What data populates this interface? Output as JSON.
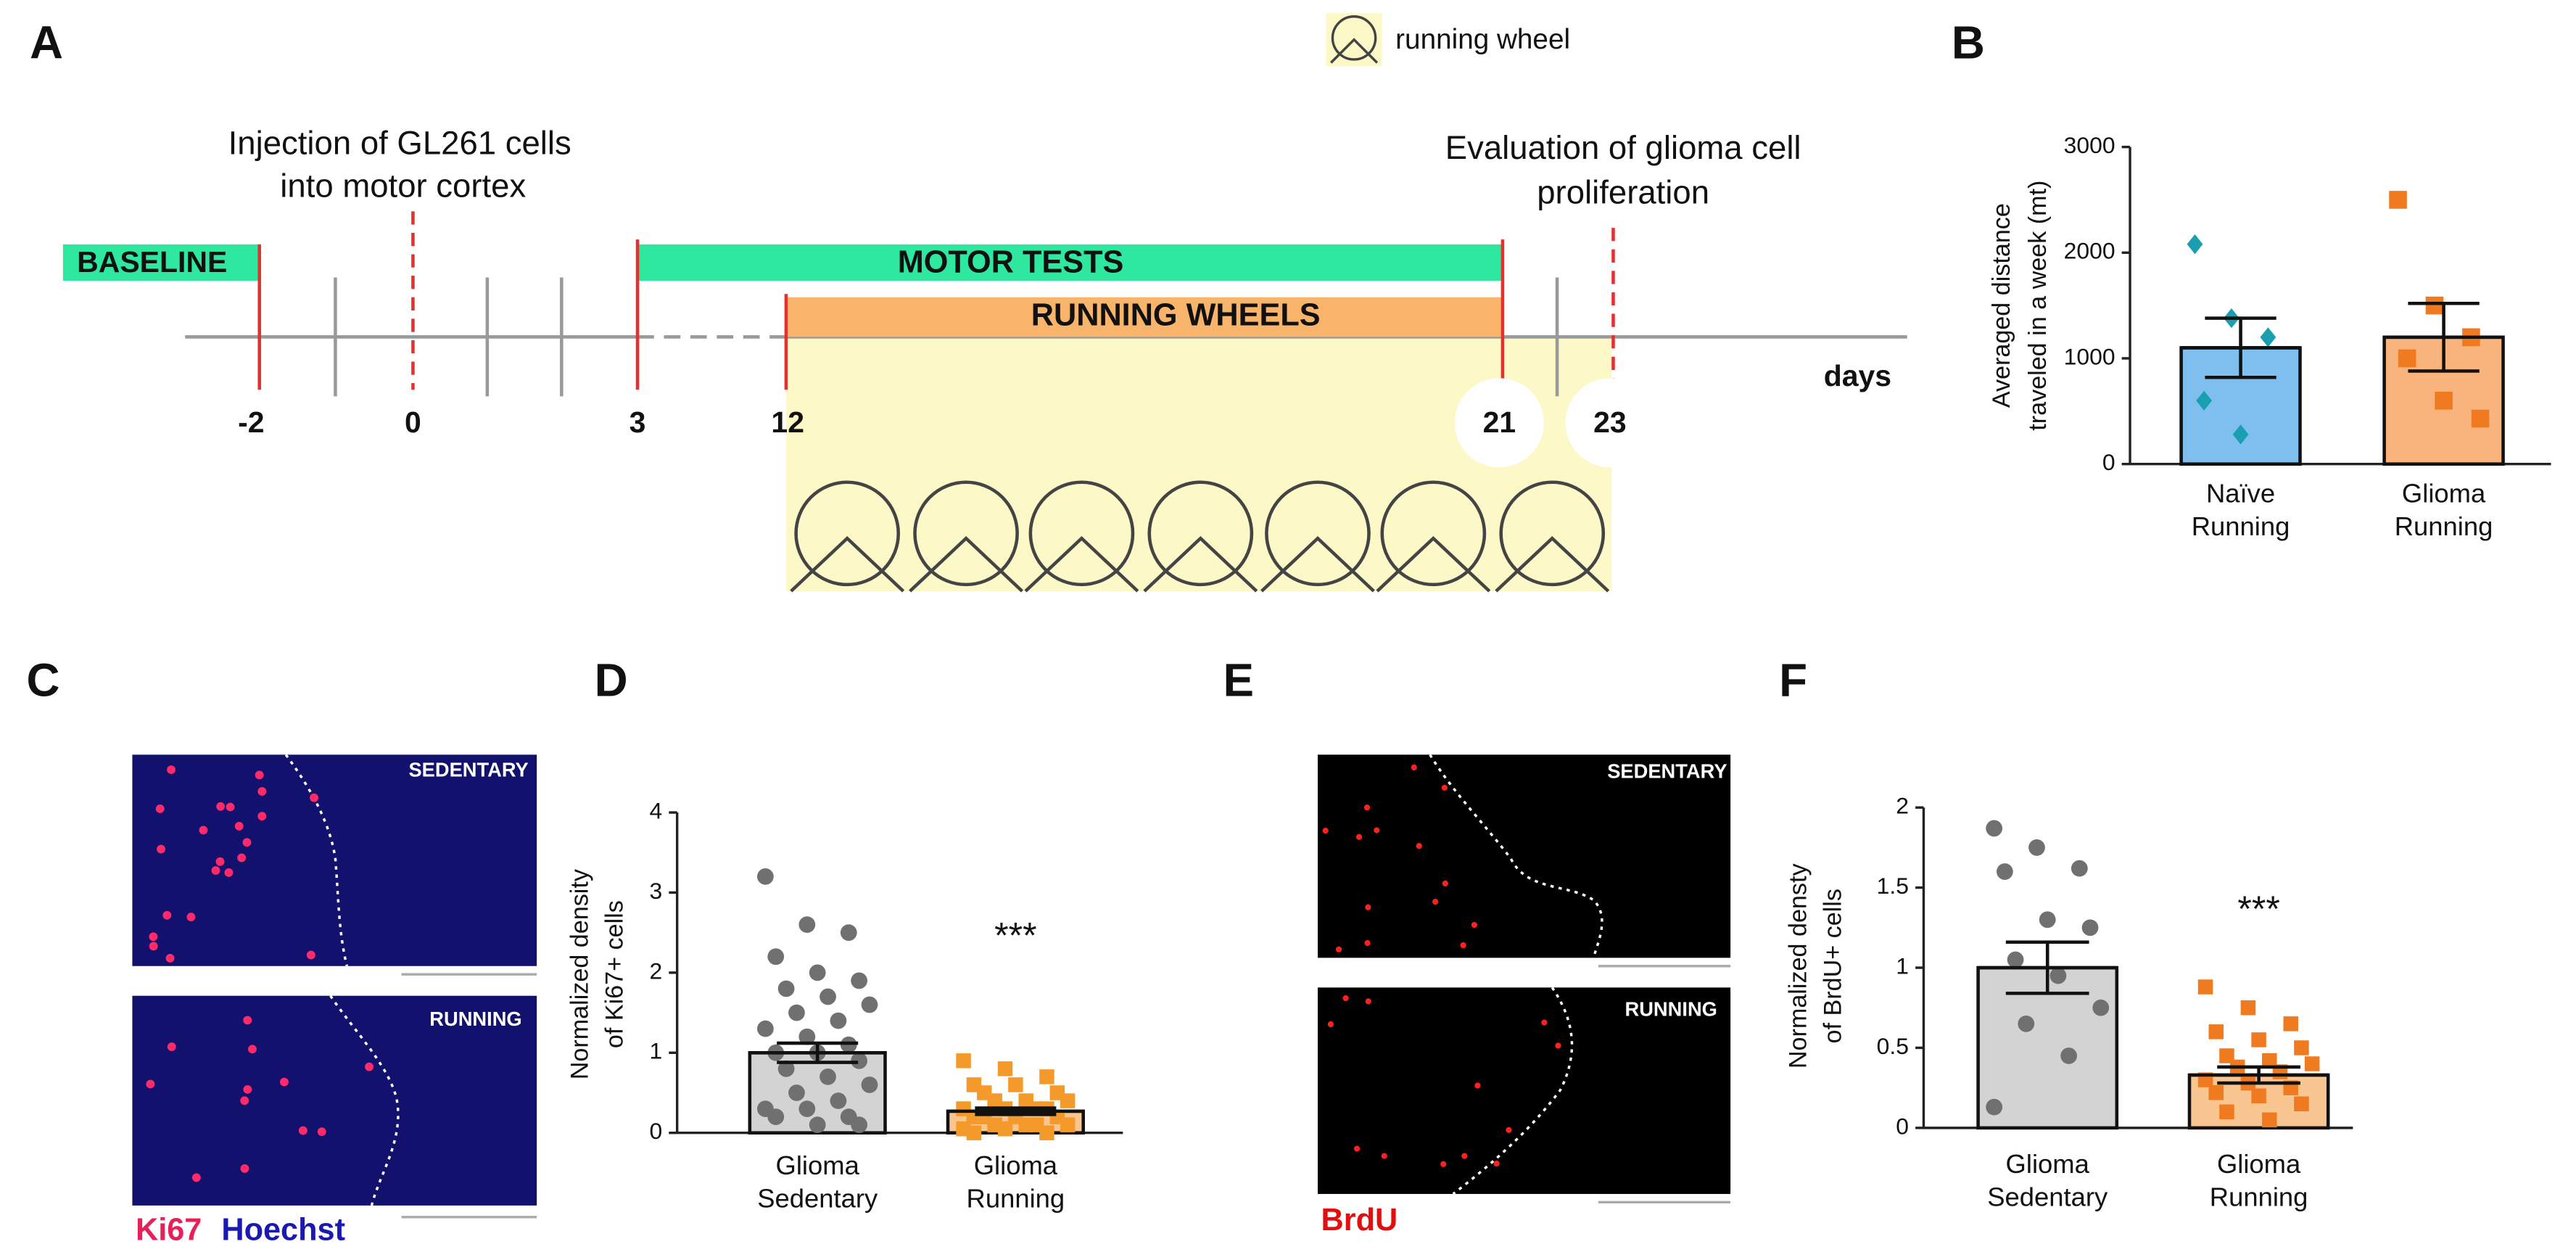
{
  "figure": {
    "panel_labels": [
      "A",
      "B",
      "C",
      "D",
      "E",
      "F"
    ],
    "timeline": {
      "legend": "running wheel",
      "injection": [
        "Injection of GL261 cells",
        "into motor cortex"
      ],
      "evaluation": [
        "Evaluation of glioma cell",
        "proliferation"
      ],
      "phases": [
        "BASELINE",
        "MOTOR TESTS",
        "RUNNING WHEELS"
      ],
      "days": [
        "-2",
        "0",
        "3",
        "12",
        "21",
        "23"
      ],
      "unit": "days"
    },
    "images": {
      "C": {
        "conditions": [
          "SEDENTARY",
          "RUNNING"
        ],
        "stains": [
          "Ki67",
          "Hoechst"
        ]
      },
      "E": {
        "conditions": [
          "SEDENTARY",
          "RUNNING"
        ],
        "stains": [
          "BrdU"
        ]
      }
    }
  },
  "chart_data": [
    {
      "type": "bar",
      "ylabel": [
        "Averaged distance",
        "traveled in a week (mt)"
      ],
      "categories": [
        [
          "Naïve",
          "Running"
        ],
        [
          "Glioma",
          "Running"
        ]
      ],
      "values": [
        1100,
        1200
      ],
      "errors": [
        280,
        320
      ],
      "colors": [
        "#7fbfef",
        "#f8b47c"
      ],
      "points": [
        [
          2080,
          1380,
          1200,
          600,
          280
        ],
        [
          2500,
          1500,
          1200,
          1000,
          600,
          430
        ]
      ],
      "point_colors": [
        "#1a9fb0",
        "#f07a20"
      ],
      "point_shapes": [
        "diamond",
        "square"
      ],
      "ylim": [
        0,
        3000
      ],
      "yticks": [
        0,
        1000,
        2000,
        3000
      ]
    },
    {
      "type": "bar",
      "ylabel": [
        "Normalized density",
        "of Ki67+ cells"
      ],
      "categories": [
        [
          "Glioma",
          "Sedentary"
        ],
        [
          "Glioma",
          "Running"
        ]
      ],
      "values": [
        1.0,
        0.27
      ],
      "errors": [
        0.12,
        0.04
      ],
      "colors": [
        "#d3d3d3",
        "#f9c590"
      ],
      "points": [
        [
          3.2,
          2.6,
          2.5,
          2.2,
          2.0,
          1.9,
          1.8,
          1.7,
          1.6,
          1.5,
          1.4,
          1.3,
          1.2,
          1.1,
          1.0,
          1.0,
          0.9,
          0.8,
          0.7,
          0.6,
          0.5,
          0.4,
          0.3,
          0.3,
          0.2,
          0.2,
          0.1,
          0.1
        ],
        [
          0.9,
          0.8,
          0.7,
          0.6,
          0.6,
          0.5,
          0.5,
          0.4,
          0.4,
          0.4,
          0.3,
          0.3,
          0.3,
          0.3,
          0.2,
          0.2,
          0.2,
          0.2,
          0.1,
          0.1,
          0.1,
          0.1,
          0.05,
          0.05,
          0,
          0
        ]
      ],
      "point_colors": [
        "#707070",
        "#f39a2a"
      ],
      "point_shapes": [
        "circle",
        "square"
      ],
      "annotation": "***",
      "ylim": [
        0,
        4
      ],
      "yticks": [
        0,
        1,
        2,
        3,
        4
      ]
    },
    {
      "type": "bar",
      "ylabel": [
        "Normalized densty",
        "of BrdU+ cells"
      ],
      "categories": [
        [
          "Glioma",
          "Sedentary"
        ],
        [
          "Glioma",
          "Running"
        ]
      ],
      "values": [
        1.0,
        0.33
      ],
      "errors": [
        0.16,
        0.05
      ],
      "colors": [
        "#d3d3d3",
        "#f9c590"
      ],
      "points": [
        [
          1.87,
          1.75,
          1.62,
          1.6,
          1.3,
          1.25,
          1.05,
          0.95,
          0.75,
          0.65,
          0.45,
          0.13
        ],
        [
          0.88,
          0.75,
          0.65,
          0.6,
          0.55,
          0.5,
          0.45,
          0.42,
          0.4,
          0.38,
          0.35,
          0.3,
          0.28,
          0.25,
          0.22,
          0.2,
          0.15,
          0.1,
          0.05
        ]
      ],
      "point_colors": [
        "#707070",
        "#f07a20"
      ],
      "point_shapes": [
        "circle",
        "square"
      ],
      "annotation": "***",
      "ylim": [
        0,
        2
      ],
      "yticks": [
        0,
        0.5,
        1,
        1.5,
        2
      ]
    }
  ]
}
